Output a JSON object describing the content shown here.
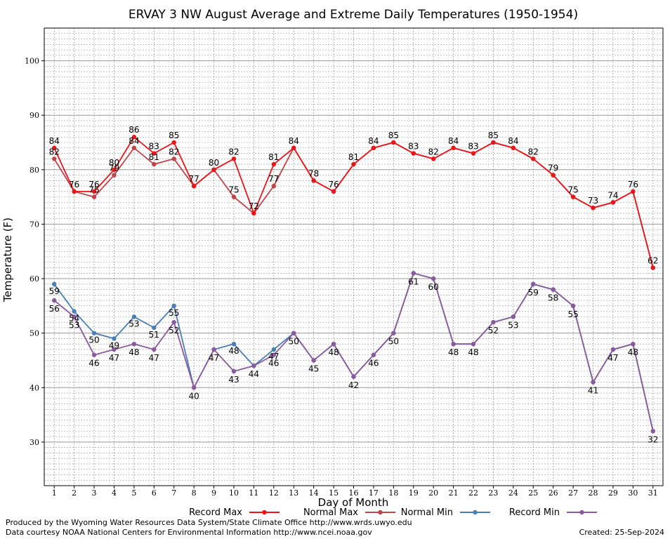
{
  "chart_data": {
    "type": "line",
    "title": "ERVAY 3 NW August Average and Extreme Daily Temperatures (1950-1954)",
    "xlabel": "Day of Month",
    "ylabel": "Temperature (F)",
    "x": [
      1,
      2,
      3,
      4,
      5,
      6,
      7,
      8,
      9,
      10,
      11,
      12,
      13,
      14,
      15,
      16,
      17,
      18,
      19,
      20,
      21,
      22,
      23,
      24,
      25,
      26,
      27,
      28,
      29,
      30,
      31
    ],
    "xlim": [
      0.5,
      31.5
    ],
    "ylim": [
      22,
      106
    ],
    "yticks": [
      30,
      40,
      50,
      60,
      70,
      80,
      90,
      100
    ],
    "grid": true,
    "legend_position": "bottom",
    "series": [
      {
        "name": "Record Max",
        "color": "#e8161b",
        "values": [
          84,
          76,
          76,
          80,
          86,
          83,
          85,
          77,
          80,
          82,
          72,
          81,
          84,
          78,
          76,
          81,
          84,
          85,
          83,
          82,
          84,
          83,
          85,
          84,
          82,
          79,
          75,
          73,
          74,
          76,
          62
        ]
      },
      {
        "name": "Normal Max",
        "color": "#c0434a",
        "values": [
          82,
          76,
          75,
          79,
          84,
          81,
          82,
          77,
          80,
          75,
          72,
          77,
          84,
          78,
          76,
          81,
          84,
          85,
          83,
          82,
          84,
          83,
          85,
          84,
          82,
          79,
          75,
          73,
          74,
          76,
          62
        ]
      },
      {
        "name": "Normal Min",
        "color": "#4a7fb5",
        "values": [
          59,
          54,
          50,
          49,
          53,
          51,
          55,
          40,
          47,
          48,
          44,
          47,
          50,
          45,
          48,
          42,
          46,
          50,
          61,
          60,
          48,
          48,
          52,
          53,
          59,
          58,
          55,
          41,
          47,
          48,
          32
        ]
      },
      {
        "name": "Record Min",
        "color": "#8a5a9e",
        "values": [
          56,
          53,
          46,
          47,
          48,
          47,
          52,
          40,
          47,
          43,
          44,
          46,
          50,
          45,
          48,
          42,
          46,
          50,
          61,
          60,
          48,
          48,
          52,
          53,
          59,
          58,
          55,
          41,
          47,
          48,
          32
        ]
      }
    ]
  },
  "footer": {
    "left_line1": "Produced by the Wyoming Water Resources Data System/State Climate Office http://www.wrds.uwyo.edu",
    "left_line2": "Data courtesy NOAA National Centers for Environmental Information http://www.ncei.noaa.gov",
    "created": "Created:  25-Sep-2024"
  }
}
